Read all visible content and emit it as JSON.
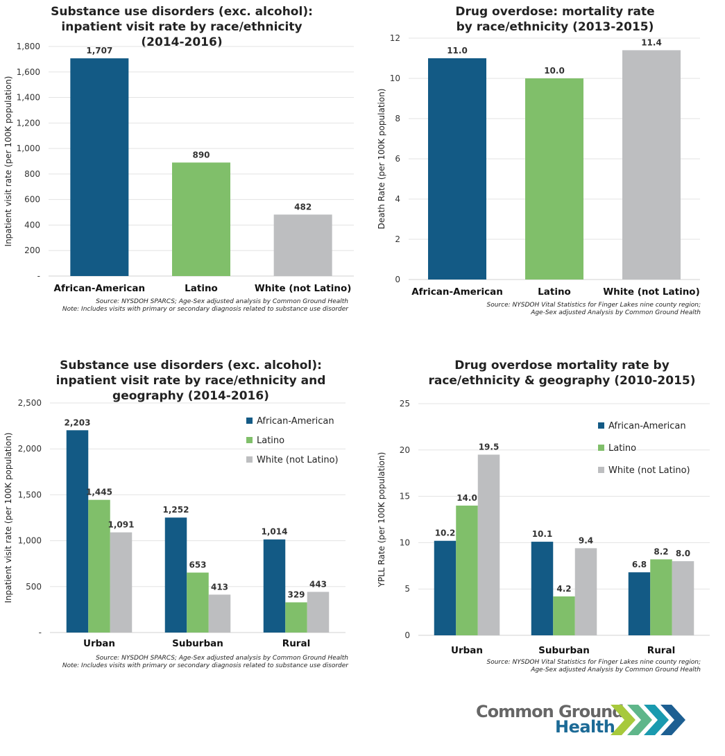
{
  "colors": {
    "African-American": "#135a85",
    "Latino": "#80bf6a",
    "White (not Latino)": "#bdbec0",
    "grid": "#e3e3e3"
  },
  "chart_data": [
    {
      "type": "bar",
      "title": [
        "Substance use disorders (exc. alcohol):",
        "inpatient visit rate by race/ethnicity",
        "(2014-2016)"
      ],
      "ylabel": "Inpatient visit rate (per 100K population)",
      "categories": [
        "African-American",
        "Latino",
        "White (not Latino)"
      ],
      "values": [
        1707,
        890,
        482
      ],
      "value_labels": [
        "1,707",
        "890",
        "482"
      ],
      "ylim": [
        0,
        1800
      ],
      "yticks": [
        "-",
        "200",
        "400",
        "600",
        "800",
        "1,000",
        "1,200",
        "1,400",
        "1,600",
        "1,800"
      ],
      "grid": true,
      "source": [
        "Source: NYSDOH SPARCS; Age-Sex adjusted analysis by Common Ground Health",
        "Note: Includes visits with primary or secondary diagnosis related to substance use disorder"
      ]
    },
    {
      "type": "bar",
      "title": [
        "Drug overdose: mortality rate",
        "by race/ethnicity (2013-2015)"
      ],
      "ylabel": "Death Rate (per 100K population)",
      "categories": [
        "African-American",
        "Latino",
        "White (not Latino)"
      ],
      "values": [
        11.0,
        10.0,
        11.4
      ],
      "value_labels": [
        "11.0",
        "10.0",
        "11.4"
      ],
      "ylim": [
        0,
        12
      ],
      "yticks": [
        "0",
        "2",
        "4",
        "6",
        "8",
        "10",
        "12"
      ],
      "grid": true,
      "source": [
        "Source: NYSDOH Vital Statistics for Finger Lakes nine county region;",
        "Age-Sex adjusted Analysis by Common Ground Health"
      ]
    },
    {
      "type": "bar",
      "title": [
        "Substance use disorders (exc. alcohol):",
        "inpatient visit rate by race/ethnicity and",
        "geography (2014-2016)"
      ],
      "ylabel": "Inpatient visit rate (per 100K population)",
      "categories": [
        "Urban",
        "Suburban",
        "Rural"
      ],
      "series": [
        {
          "name": "African-American",
          "values": [
            2203,
            1252,
            1014
          ],
          "value_labels": [
            "2,203",
            "1,252",
            "1,014"
          ]
        },
        {
          "name": "Latino",
          "values": [
            1445,
            653,
            329
          ],
          "value_labels": [
            "1,445",
            "653",
            "329"
          ]
        },
        {
          "name": "White (not Latino)",
          "values": [
            1091,
            413,
            443
          ],
          "value_labels": [
            "1,091",
            "413",
            "443"
          ]
        }
      ],
      "ylim": [
        0,
        2500
      ],
      "yticks": [
        "-",
        "500",
        "1,000",
        "1,500",
        "2,000",
        "2,500"
      ],
      "grid": true,
      "legend": "top-right",
      "source": [
        "Source: NYSDOH SPARCS; Age-Sex adjusted analysis by Common Ground Health",
        "Note: Includes visits with primary or secondary diagnosis related to substance use disorder"
      ]
    },
    {
      "type": "bar",
      "title": [
        "Drug overdose mortality rate by",
        "race/ethnicity & geography (2010-2015)"
      ],
      "ylabel": "YPLL Rate (per 100K population)",
      "categories": [
        "Urban",
        "Suburban",
        "Rural"
      ],
      "series": [
        {
          "name": "African-American",
          "values": [
            10.2,
            10.1,
            6.8
          ],
          "value_labels": [
            "10.2",
            "10.1",
            "6.8"
          ]
        },
        {
          "name": "Latino",
          "values": [
            14.0,
            4.2,
            8.2
          ],
          "value_labels": [
            "14.0",
            "4.2",
            "8.2"
          ]
        },
        {
          "name": "White (not Latino)",
          "values": [
            19.5,
            9.4,
            8.0
          ],
          "value_labels": [
            "19.5",
            "9.4",
            "8.0"
          ]
        }
      ],
      "ylim": [
        0,
        25
      ],
      "yticks": [
        "0",
        "5",
        "10",
        "15",
        "20",
        "25"
      ],
      "grid": true,
      "legend": "top-right",
      "source": [
        "Source: NYSDOH Vital Statistics for Finger Lakes nine county region;",
        "Age-Sex adjusted Analysis by Common Ground Health"
      ]
    }
  ],
  "logo": {
    "line1": "Common Ground",
    "line2": "Health"
  }
}
